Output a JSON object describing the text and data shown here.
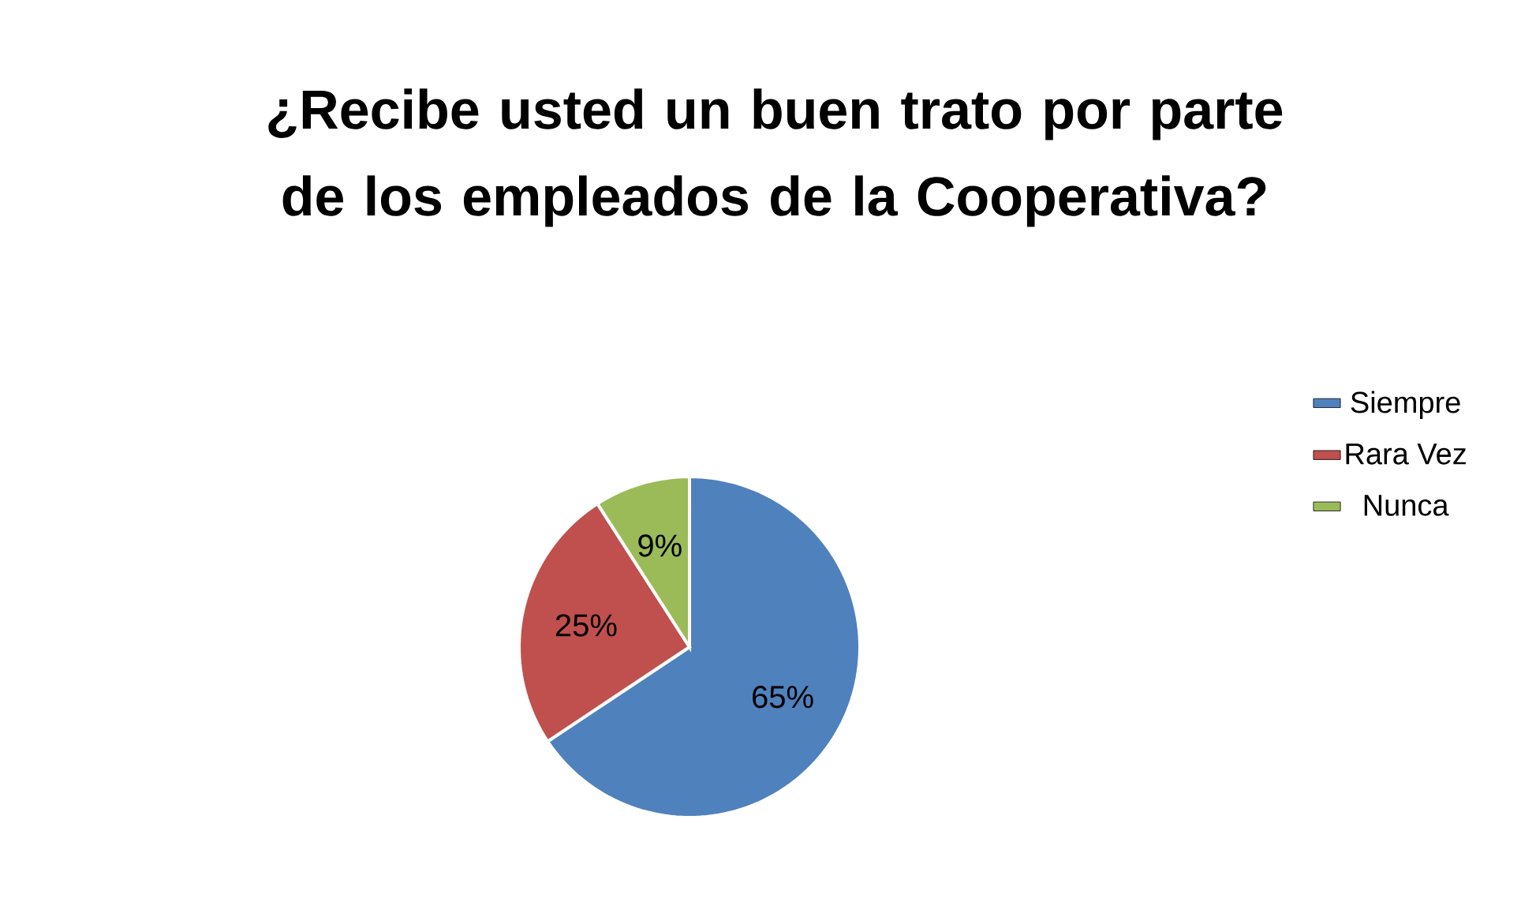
{
  "chart_data": {
    "type": "pie",
    "title": "¿Recibe usted un buen trato por parte de los empleados de la Cooperativa?",
    "categories": [
      "Siempre",
      "Rara Vez",
      "Nunca"
    ],
    "values": [
      65,
      25,
      9
    ],
    "colors": [
      "#4f81bd",
      "#c0504d",
      "#9bbb59"
    ],
    "value_labels": [
      "65%",
      "25%",
      "9%"
    ],
    "legend": "right"
  }
}
